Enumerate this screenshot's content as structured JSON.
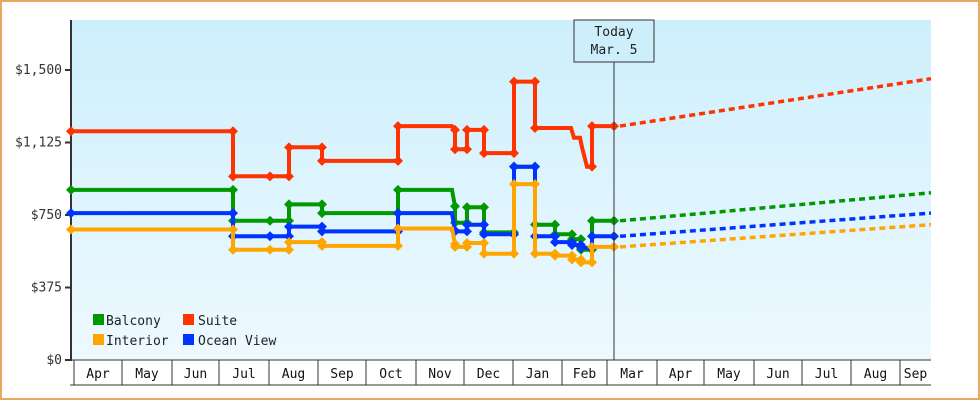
{
  "chart_data": {
    "type": "line",
    "title": "",
    "xlabel": "",
    "ylabel": "",
    "ylim": [
      0,
      1750
    ],
    "y_ticks": [
      {
        "value": 0,
        "label": "$0"
      },
      {
        "value": 375,
        "label": "$375"
      },
      {
        "value": 750,
        "label": "$750"
      },
      {
        "value": 1125,
        "label": "$1,125"
      },
      {
        "value": 1500,
        "label": "$1,500"
      }
    ],
    "x_ticks": [
      "Apr",
      "May",
      "Jun",
      "Jul",
      "Aug",
      "Sep",
      "Oct",
      "Nov",
      "Dec",
      "Jan",
      "Feb",
      "Mar",
      "Apr",
      "May",
      "Jun",
      "Jul",
      "Aug",
      "Sep"
    ],
    "today_marker": {
      "line1": "Today",
      "line2": "Mar. 5"
    },
    "legend_position": "lower-left",
    "grid": false,
    "series": [
      {
        "name": "Suite",
        "color": "#ff3300",
        "history": [
          [
            71,
            1183
          ],
          [
            233,
            1183
          ],
          [
            233,
            950
          ],
          [
            270,
            950
          ],
          [
            289,
            950
          ],
          [
            289,
            1100
          ],
          [
            322,
            1100
          ],
          [
            322,
            1030
          ],
          [
            398,
            1030
          ],
          [
            398,
            1210
          ],
          [
            452,
            1210
          ],
          [
            455,
            1190
          ],
          [
            455,
            1090
          ],
          [
            467,
            1090
          ],
          [
            467,
            1190
          ],
          [
            484,
            1190
          ],
          [
            484,
            1070
          ],
          [
            514,
            1070
          ],
          [
            514,
            1440
          ],
          [
            535,
            1440
          ],
          [
            535,
            1200
          ],
          [
            571,
            1200
          ],
          [
            574,
            1150
          ],
          [
            580,
            1150
          ],
          [
            582,
            1100
          ],
          [
            587,
            1000
          ],
          [
            592,
            1000
          ],
          [
            592,
            1210
          ],
          [
            614,
            1210
          ]
        ],
        "forecast": [
          [
            614,
            1210
          ],
          [
            931,
            1455
          ]
        ]
      },
      {
        "name": "Balcony",
        "color": "#009900",
        "history": [
          [
            71,
            880
          ],
          [
            233,
            880
          ],
          [
            233,
            720
          ],
          [
            270,
            720
          ],
          [
            289,
            720
          ],
          [
            289,
            805
          ],
          [
            322,
            805
          ],
          [
            322,
            760
          ],
          [
            398,
            760
          ],
          [
            398,
            880
          ],
          [
            452,
            880
          ],
          [
            455,
            795
          ],
          [
            455,
            710
          ],
          [
            467,
            710
          ],
          [
            467,
            790
          ],
          [
            484,
            790
          ],
          [
            484,
            660
          ],
          [
            514,
            660
          ],
          [
            514,
            1000
          ],
          [
            535,
            1000
          ],
          [
            535,
            700
          ],
          [
            555,
            700
          ],
          [
            555,
            650
          ],
          [
            572,
            650
          ],
          [
            572,
            625
          ],
          [
            581,
            625
          ],
          [
            581,
            570
          ],
          [
            592,
            570
          ],
          [
            592,
            720
          ],
          [
            614,
            720
          ]
        ],
        "forecast": [
          [
            614,
            720
          ],
          [
            931,
            865
          ]
        ]
      },
      {
        "name": "Ocean View",
        "color": "#0033ff",
        "history": [
          [
            71,
            760
          ],
          [
            233,
            760
          ],
          [
            233,
            640
          ],
          [
            270,
            640
          ],
          [
            289,
            640
          ],
          [
            289,
            690
          ],
          [
            322,
            690
          ],
          [
            322,
            665
          ],
          [
            398,
            665
          ],
          [
            398,
            760
          ],
          [
            452,
            760
          ],
          [
            455,
            670
          ],
          [
            455,
            665
          ],
          [
            467,
            665
          ],
          [
            467,
            700
          ],
          [
            484,
            700
          ],
          [
            484,
            650
          ],
          [
            514,
            650
          ],
          [
            514,
            1000
          ],
          [
            535,
            1000
          ],
          [
            535,
            640
          ],
          [
            555,
            640
          ],
          [
            555,
            610
          ],
          [
            572,
            610
          ],
          [
            572,
            595
          ],
          [
            581,
            595
          ],
          [
            581,
            580
          ],
          [
            592,
            580
          ],
          [
            592,
            640
          ],
          [
            614,
            640
          ]
        ],
        "forecast": [
          [
            614,
            640
          ],
          [
            931,
            760
          ]
        ]
      },
      {
        "name": "Interior",
        "color": "#ffa500",
        "history": [
          [
            71,
            675
          ],
          [
            233,
            675
          ],
          [
            233,
            570
          ],
          [
            270,
            570
          ],
          [
            289,
            570
          ],
          [
            289,
            610
          ],
          [
            322,
            610
          ],
          [
            322,
            590
          ],
          [
            398,
            590
          ],
          [
            398,
            680
          ],
          [
            452,
            680
          ],
          [
            455,
            600
          ],
          [
            455,
            585
          ],
          [
            467,
            585
          ],
          [
            467,
            605
          ],
          [
            484,
            605
          ],
          [
            484,
            550
          ],
          [
            514,
            550
          ],
          [
            514,
            910
          ],
          [
            535,
            910
          ],
          [
            535,
            550
          ],
          [
            555,
            550
          ],
          [
            555,
            540
          ],
          [
            572,
            540
          ],
          [
            572,
            520
          ],
          [
            581,
            520
          ],
          [
            581,
            505
          ],
          [
            592,
            505
          ],
          [
            592,
            585
          ],
          [
            614,
            585
          ]
        ],
        "forecast": [
          [
            614,
            585
          ],
          [
            931,
            700
          ]
        ]
      }
    ]
  },
  "legend": {
    "items": [
      {
        "label": "Balcony",
        "color": "#009900"
      },
      {
        "label": "Suite",
        "color": "#ff3300"
      },
      {
        "label": "Interior",
        "color": "#ffa500"
      },
      {
        "label": "Ocean View",
        "color": "#0033ff"
      }
    ]
  },
  "colors": {
    "frame": "#e8a860",
    "plot_bg_top": "#cdeffc",
    "plot_bg_bottom": "#eef9ff",
    "axis": "#333333"
  }
}
